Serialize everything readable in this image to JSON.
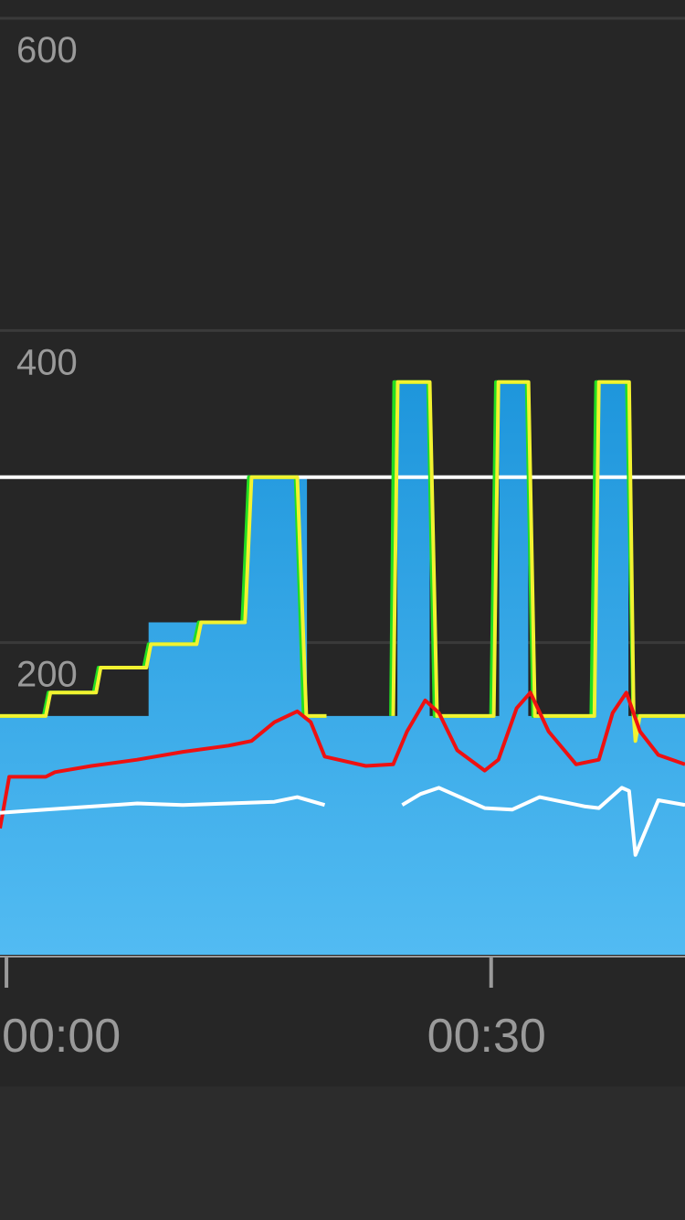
{
  "chart_data": {
    "type": "line",
    "xlim": [
      -0.4,
      42
    ],
    "ylim": [
      0,
      600
    ],
    "xticks": [
      {
        "value": 0,
        "label": "00:00"
      },
      {
        "value": 30,
        "label": "00:30"
      }
    ],
    "yticks": [
      200,
      400,
      600
    ],
    "grid": true,
    "reference_line": {
      "value": 306,
      "color": "#ffffff"
    },
    "series": [
      {
        "color": "#2ba3e6",
        "area": true,
        "x": [
          -0.4,
          8.8,
          8.8,
          14.9,
          14.9,
          18.6,
          18.6,
          24.2,
          24.2,
          26.2,
          26.2,
          30.5,
          30.5,
          32.3,
          32.3,
          36.5,
          36.5,
          38.5,
          38.5,
          42
        ],
        "values": [
          153,
          153,
          213,
          213,
          307,
          307,
          153,
          153,
          367,
          367,
          153,
          153,
          367,
          367,
          153,
          153,
          367,
          367,
          153,
          153
        ]
      },
      {
        "color": "#22dd22",
        "x": [
          -0.4,
          2.3,
          2.6,
          5.4,
          5.7,
          8.5,
          8.8,
          11.6,
          11.9,
          14.6,
          15.0,
          17.9,
          18.4,
          19.8,
          22.2,
          23.8,
          24.0,
          26.1,
          26.5,
          30.0,
          30.3,
          32.2,
          32.6,
          36.2,
          36.5,
          38.4,
          38.8,
          42
        ],
        "values": [
          153,
          153,
          168,
          168,
          184,
          184,
          199,
          199,
          213,
          213,
          306,
          306,
          153,
          153,
          null,
          153,
          367,
          367,
          153,
          153,
          367,
          367,
          153,
          153,
          367,
          367,
          153,
          153
        ]
      },
      {
        "color": "#f2f230",
        "x": [
          -0.4,
          2.43,
          2.72,
          5.55,
          5.83,
          8.66,
          8.94,
          11.77,
          12.05,
          14.77,
          15.17,
          18.0,
          18.56,
          19.81,
          22.24,
          23.94,
          24.22,
          26.2,
          26.65,
          30.16,
          30.45,
          32.31,
          32.71,
          36.39,
          36.67,
          38.54,
          38.82,
          38.93,
          39.2,
          42
        ],
        "values": [
          153,
          153,
          168,
          168,
          184,
          184,
          199,
          199,
          213,
          213,
          306,
          306,
          153,
          153,
          null,
          153,
          367,
          367,
          153,
          153,
          367,
          367,
          153,
          153,
          367,
          367,
          153,
          137,
          153,
          153
        ]
      },
      {
        "color": "#ee1111",
        "x": [
          -0.4,
          0.17,
          2.43,
          3.0,
          5.26,
          8.09,
          10.92,
          13.75,
          15.17,
          16.58,
          18.0,
          18.84,
          19.7,
          22.24,
          23.94,
          24.79,
          25.92,
          26.77,
          27.9,
          29.6,
          30.45,
          31.58,
          32.43,
          33.56,
          35.26,
          36.67,
          37.52,
          38.37,
          39.22,
          40.35,
          42
        ],
        "values": [
          81,
          114,
          114,
          117,
          121,
          125,
          130,
          134,
          137,
          149,
          156,
          149,
          127,
          121,
          122,
          143,
          163,
          155,
          131,
          118,
          125,
          158,
          168,
          143,
          122,
          125,
          155,
          168,
          143,
          128,
          122
        ]
      },
      {
        "color": "#ffffff",
        "x": [
          -0.4,
          2.43,
          5.26,
          8.09,
          10.92,
          13.75,
          16.58,
          18.0,
          19.7,
          22.24,
          24.5,
          25.63,
          26.77,
          29.6,
          31.3,
          33.0,
          35.83,
          36.67,
          38.09,
          38.54,
          38.93,
          40.35,
          42
        ],
        "values": [
          91,
          93,
          95,
          97,
          96,
          97,
          98,
          101,
          96,
          null,
          96,
          103,
          107,
          94,
          93,
          101,
          95,
          94,
          107,
          105,
          64,
          99,
          96
        ]
      }
    ]
  }
}
